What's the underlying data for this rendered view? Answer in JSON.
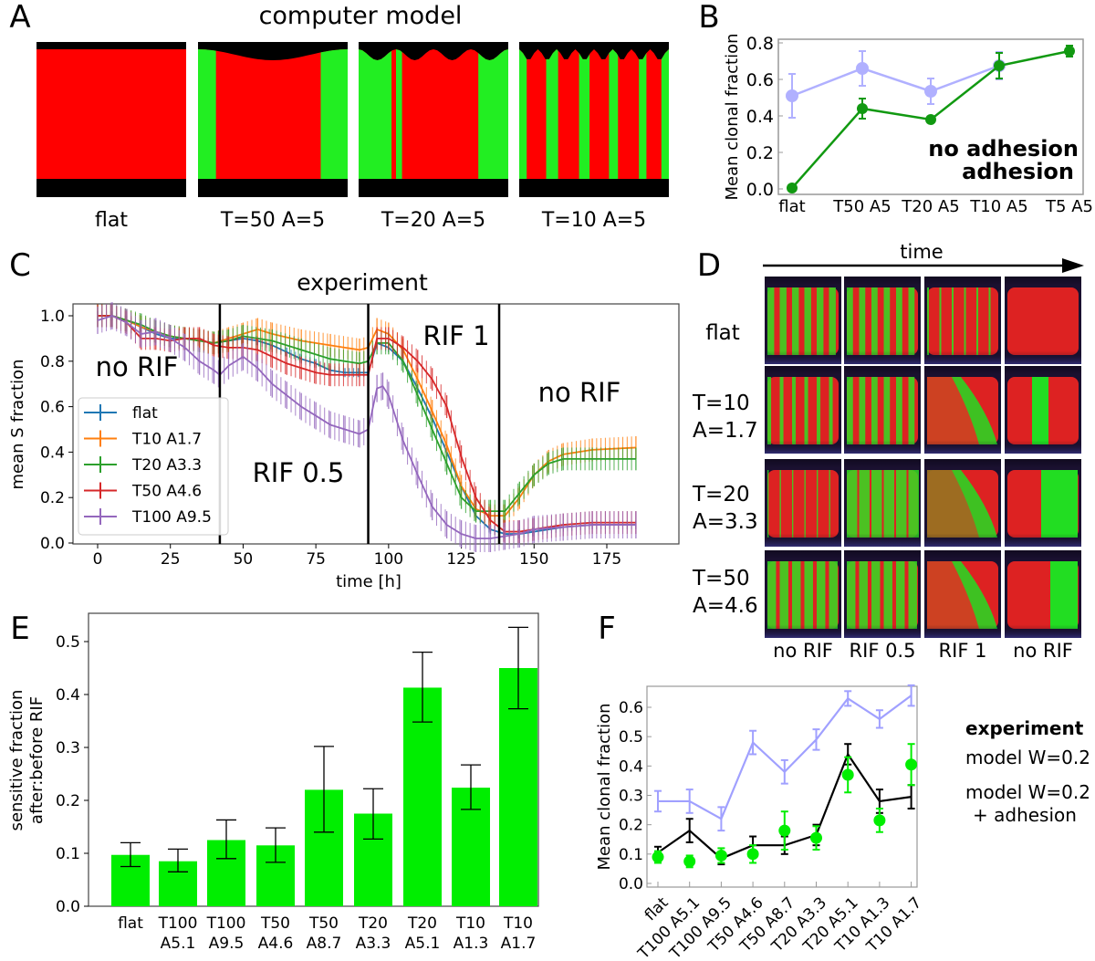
{
  "panel_letters": [
    "A",
    "B",
    "C",
    "D",
    "E",
    "F"
  ],
  "panel_a": {
    "title": "computer model",
    "images": [
      {
        "label": "flat",
        "pattern": "flat"
      },
      {
        "label": "T=50  A=5",
        "pattern": "t50"
      },
      {
        "label": "T=20  A=5",
        "pattern": "t20"
      },
      {
        "label": "T=10  A=5",
        "pattern": "t10"
      }
    ],
    "colors": {
      "red": "#ff0000",
      "green": "#22ee22",
      "background": "#000000"
    }
  },
  "panel_d": {
    "axis_label": "time",
    "column_labels": [
      "no RIF",
      "RIF 0.5",
      "RIF 1",
      "no RIF"
    ],
    "row_labels": [
      [
        "flat"
      ],
      [
        "T=10",
        "A=1.7"
      ],
      [
        "T=20",
        "A=3.3"
      ],
      [
        "T=50",
        "A=4.6"
      ]
    ]
  },
  "chart_data": [
    {
      "id": "B",
      "type": "line",
      "ylabel": "Mean clonal fraction",
      "categories": [
        "flat",
        "T50 A5",
        "T20 A5",
        "T10 A5",
        "T5 A5"
      ],
      "ylim": [
        0,
        0.8
      ],
      "yticks": [
        "0.0",
        "0.2",
        "0.4",
        "0.6",
        "0.8"
      ],
      "series": [
        {
          "name": "no adhesion",
          "color": "#119911",
          "values": [
            0.005,
            0.44,
            0.38,
            0.675,
            0.755
          ],
          "err": [
            0.01,
            0.055,
            0.01,
            0.07,
            0.03
          ]
        },
        {
          "name": "adhesion",
          "color": "#b0b0ff",
          "values": [
            0.51,
            0.66,
            0.535,
            0.675,
            null
          ],
          "err": [
            0.12,
            0.095,
            0.07,
            0.075,
            null
          ]
        }
      ],
      "legend": "bottom-right"
    },
    {
      "id": "C",
      "type": "line",
      "title": "experiment",
      "xlabel": "time [h]",
      "ylabel": "mean S fraction",
      "xlim": [
        -8,
        197
      ],
      "ylim": [
        0,
        1.05
      ],
      "xticks": [
        0,
        25,
        50,
        75,
        100,
        125,
        150,
        175
      ],
      "yticks": [
        "0.0",
        "0.2",
        "0.4",
        "0.6",
        "0.8",
        "1.0"
      ],
      "phase_boundaries": [
        42,
        93,
        138
      ],
      "annotations": [
        "no RIF",
        "RIF 0.5",
        "RIF 1",
        "no RIF"
      ],
      "legend": "left",
      "series": [
        {
          "name": "flat",
          "color": "#1f77b4",
          "err": 0.02,
          "points": [
            [
              0,
              1.0
            ],
            [
              5,
              1.0
            ],
            [
              10,
              0.98
            ],
            [
              15,
              0.95
            ],
            [
              20,
              0.92
            ],
            [
              25,
              0.9
            ],
            [
              30,
              0.9
            ],
            [
              35,
              0.89
            ],
            [
              40,
              0.88
            ],
            [
              45,
              0.89
            ],
            [
              50,
              0.9
            ],
            [
              55,
              0.89
            ],
            [
              60,
              0.87
            ],
            [
              65,
              0.84
            ],
            [
              70,
              0.81
            ],
            [
              75,
              0.79
            ],
            [
              80,
              0.76
            ],
            [
              85,
              0.75
            ],
            [
              90,
              0.75
            ],
            [
              93,
              0.75
            ],
            [
              96,
              0.88
            ],
            [
              100,
              0.86
            ],
            [
              105,
              0.8
            ],
            [
              110,
              0.68
            ],
            [
              115,
              0.55
            ],
            [
              120,
              0.4
            ],
            [
              125,
              0.25
            ],
            [
              130,
              0.12
            ],
            [
              135,
              0.06
            ],
            [
              140,
              0.04
            ],
            [
              145,
              0.04
            ],
            [
              150,
              0.05
            ],
            [
              160,
              0.07
            ],
            [
              170,
              0.08
            ],
            [
              185,
              0.08
            ]
          ]
        },
        {
          "name": "T10 A1.7",
          "color": "#ff7f0e",
          "err": 0.05,
          "points": [
            [
              0,
              1.0
            ],
            [
              5,
              1.0
            ],
            [
              10,
              0.98
            ],
            [
              15,
              0.95
            ],
            [
              20,
              0.93
            ],
            [
              25,
              0.91
            ],
            [
              30,
              0.9
            ],
            [
              35,
              0.89
            ],
            [
              40,
              0.88
            ],
            [
              45,
              0.9
            ],
            [
              50,
              0.92
            ],
            [
              55,
              0.94
            ],
            [
              60,
              0.92
            ],
            [
              70,
              0.89
            ],
            [
              80,
              0.87
            ],
            [
              90,
              0.85
            ],
            [
              93,
              0.86
            ],
            [
              96,
              0.94
            ],
            [
              100,
              0.92
            ],
            [
              105,
              0.85
            ],
            [
              110,
              0.72
            ],
            [
              115,
              0.58
            ],
            [
              120,
              0.43
            ],
            [
              125,
              0.25
            ],
            [
              130,
              0.15
            ],
            [
              135,
              0.12
            ],
            [
              140,
              0.12
            ],
            [
              145,
              0.2
            ],
            [
              150,
              0.3
            ],
            [
              155,
              0.36
            ],
            [
              160,
              0.39
            ],
            [
              170,
              0.41
            ],
            [
              185,
              0.42
            ]
          ]
        },
        {
          "name": "T20 A3.3",
          "color": "#2ca02c",
          "err": 0.05,
          "points": [
            [
              0,
              1.0
            ],
            [
              5,
              1.0
            ],
            [
              10,
              0.98
            ],
            [
              15,
              0.96
            ],
            [
              20,
              0.93
            ],
            [
              25,
              0.91
            ],
            [
              30,
              0.9
            ],
            [
              35,
              0.89
            ],
            [
              40,
              0.88
            ],
            [
              45,
              0.89
            ],
            [
              50,
              0.91
            ],
            [
              60,
              0.89
            ],
            [
              70,
              0.85
            ],
            [
              80,
              0.81
            ],
            [
              90,
              0.79
            ],
            [
              93,
              0.8
            ],
            [
              96,
              0.88
            ],
            [
              100,
              0.88
            ],
            [
              105,
              0.8
            ],
            [
              110,
              0.65
            ],
            [
              115,
              0.5
            ],
            [
              120,
              0.35
            ],
            [
              125,
              0.2
            ],
            [
              130,
              0.14
            ],
            [
              135,
              0.14
            ],
            [
              140,
              0.14
            ],
            [
              145,
              0.22
            ],
            [
              150,
              0.3
            ],
            [
              155,
              0.35
            ],
            [
              160,
              0.37
            ],
            [
              170,
              0.37
            ],
            [
              185,
              0.37
            ]
          ]
        },
        {
          "name": "T50 A4.6",
          "color": "#d62728",
          "err": 0.05,
          "points": [
            [
              0,
              1.0
            ],
            [
              5,
              1.0
            ],
            [
              10,
              0.97
            ],
            [
              15,
              0.9
            ],
            [
              20,
              0.9
            ],
            [
              25,
              0.89
            ],
            [
              30,
              0.9
            ],
            [
              35,
              0.9
            ],
            [
              40,
              0.87
            ],
            [
              45,
              0.86
            ],
            [
              50,
              0.86
            ],
            [
              55,
              0.85
            ],
            [
              60,
              0.82
            ],
            [
              65,
              0.79
            ],
            [
              70,
              0.77
            ],
            [
              75,
              0.75
            ],
            [
              80,
              0.74
            ],
            [
              90,
              0.74
            ],
            [
              93,
              0.74
            ],
            [
              96,
              0.9
            ],
            [
              100,
              0.9
            ],
            [
              105,
              0.86
            ],
            [
              110,
              0.8
            ],
            [
              115,
              0.72
            ],
            [
              120,
              0.6
            ],
            [
              125,
              0.38
            ],
            [
              130,
              0.2
            ],
            [
              135,
              0.1
            ],
            [
              140,
              0.05
            ],
            [
              145,
              0.05
            ],
            [
              150,
              0.06
            ],
            [
              160,
              0.08
            ],
            [
              170,
              0.09
            ],
            [
              185,
              0.09
            ]
          ]
        },
        {
          "name": "T100 A9.5",
          "color": "#9467bd",
          "err": 0.06,
          "points": [
            [
              0,
              0.98
            ],
            [
              5,
              1.0
            ],
            [
              10,
              0.97
            ],
            [
              15,
              0.92
            ],
            [
              20,
              0.93
            ],
            [
              25,
              0.9
            ],
            [
              30,
              0.86
            ],
            [
              35,
              0.8
            ],
            [
              40,
              0.76
            ],
            [
              42,
              0.74
            ],
            [
              45,
              0.78
            ],
            [
              50,
              0.82
            ],
            [
              55,
              0.77
            ],
            [
              60,
              0.7
            ],
            [
              65,
              0.65
            ],
            [
              70,
              0.6
            ],
            [
              75,
              0.56
            ],
            [
              80,
              0.52
            ],
            [
              85,
              0.5
            ],
            [
              90,
              0.48
            ],
            [
              93,
              0.5
            ],
            [
              96,
              0.68
            ],
            [
              98,
              0.69
            ],
            [
              100,
              0.65
            ],
            [
              105,
              0.45
            ],
            [
              110,
              0.3
            ],
            [
              115,
              0.16
            ],
            [
              120,
              0.08
            ],
            [
              125,
              0.04
            ],
            [
              130,
              0.02
            ],
            [
              135,
              0.02
            ],
            [
              140,
              0.03
            ],
            [
              145,
              0.04
            ],
            [
              150,
              0.06
            ],
            [
              160,
              0.07
            ],
            [
              170,
              0.08
            ],
            [
              185,
              0.08
            ]
          ]
        }
      ]
    },
    {
      "id": "E",
      "type": "bar",
      "ylabel": [
        "sensitive fraction",
        "after:before RIF"
      ],
      "categories": [
        [
          "flat"
        ],
        [
          "T100",
          "A5.1"
        ],
        [
          "T100",
          "A9.5"
        ],
        [
          "T50",
          "A4.6"
        ],
        [
          "T50",
          "A8.7"
        ],
        [
          "T20",
          "A3.3"
        ],
        [
          "T20",
          "A5.1"
        ],
        [
          "T10",
          "A1.3"
        ],
        [
          "T10",
          "A1.7"
        ]
      ],
      "values": [
        0.097,
        0.085,
        0.125,
        0.115,
        0.22,
        0.175,
        0.413,
        0.224,
        0.45
      ],
      "err_low": [
        0.075,
        0.065,
        0.09,
        0.083,
        0.14,
        0.127,
        0.348,
        0.183,
        0.373
      ],
      "err_high": [
        0.12,
        0.108,
        0.163,
        0.148,
        0.302,
        0.222,
        0.48,
        0.267,
        0.527
      ],
      "color": "#00ee00",
      "ylim": [
        0,
        0.55
      ],
      "yticks": [
        "0.0",
        "0.1",
        "0.2",
        "0.3",
        "0.4",
        "0.5"
      ]
    },
    {
      "id": "F",
      "type": "line",
      "ylabel": "Mean clonal fraction",
      "categories": [
        "flat",
        "T100 A5.1",
        "T100 A9.5",
        "T50 A4.6",
        "T50 A8.7",
        "T20 A3.3",
        "T20 A5.1",
        "T10 A1.3",
        "T10 A1.7"
      ],
      "ylim": [
        0,
        0.67
      ],
      "yticks": [
        "0.0",
        "0.1",
        "0.2",
        "0.3",
        "0.4",
        "0.5",
        "0.6"
      ],
      "legend": "right",
      "series": [
        {
          "name": "model W=0.2\n + adhesion",
          "color": "#a0a0ff",
          "style": "line",
          "values": [
            0.28,
            0.28,
            0.22,
            0.48,
            0.38,
            0.49,
            0.63,
            0.56,
            0.64
          ],
          "err": [
            0.035,
            0.04,
            0.04,
            0.04,
            0.04,
            0.035,
            0.025,
            0.03,
            0.035
          ]
        },
        {
          "name": "model W=0.2",
          "color": "#000000",
          "style": "line",
          "values": [
            0.105,
            0.18,
            0.085,
            0.13,
            0.13,
            0.165,
            0.44,
            0.28,
            0.295
          ],
          "err": [
            0.02,
            0.04,
            0.02,
            0.03,
            0.03,
            0.035,
            0.035,
            0.04,
            0.04
          ]
        },
        {
          "name": "experiment",
          "color": "#00ee00",
          "style": "points",
          "values": [
            0.09,
            0.075,
            0.095,
            0.1,
            0.18,
            0.155,
            0.37,
            0.215,
            0.405
          ],
          "err": [
            0.02,
            0.02,
            0.025,
            0.03,
            0.065,
            0.04,
            0.06,
            0.04,
            0.07
          ]
        }
      ]
    }
  ]
}
